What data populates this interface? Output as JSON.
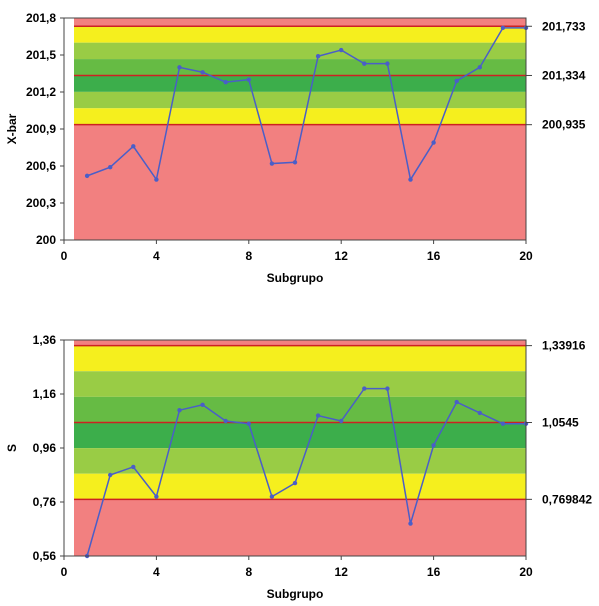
{
  "colors": {
    "red_zone": "#f28080",
    "yellow_zone": "#f5ef1e",
    "light_green_zone": "#99cc45",
    "mid_green_zone": "#66bb44",
    "dark_green_zone": "#3cae4b",
    "limit_line": "#cc2222",
    "series_line": "#4a5ec8",
    "axis": "#444444"
  },
  "chart_data": [
    {
      "type": "line",
      "title": "",
      "xlabel": "Subgrupo",
      "ylabel": "X-bar",
      "xlim": [
        0,
        20
      ],
      "ylim": [
        200,
        201.8
      ],
      "xticks": [
        "0",
        "4",
        "8",
        "12",
        "16",
        "20"
      ],
      "yticks": [
        "200",
        "200,3",
        "200,6",
        "200,9",
        "201,2",
        "201,5",
        "201,8"
      ],
      "limits": {
        "ucl": 201.733,
        "center": 201.334,
        "lcl": 200.935
      },
      "limit_labels": [
        "201,733",
        "201,334",
        "200,935"
      ],
      "x": [
        1,
        2,
        3,
        4,
        5,
        6,
        7,
        8,
        9,
        10,
        11,
        12,
        13,
        14,
        15,
        16,
        17,
        18,
        19,
        20
      ],
      "values": [
        200.52,
        200.59,
        200.76,
        200.49,
        201.4,
        201.36,
        201.28,
        201.3,
        200.62,
        200.63,
        201.49,
        201.54,
        201.43,
        201.43,
        200.49,
        200.79,
        201.29,
        201.4,
        201.72,
        201.72
      ],
      "grid": false
    },
    {
      "type": "line",
      "title": "",
      "xlabel": "Subgrupo",
      "ylabel": "S",
      "xlim": [
        0,
        20
      ],
      "ylim": [
        0.56,
        1.36
      ],
      "xticks": [
        "0",
        "4",
        "8",
        "12",
        "16",
        "20"
      ],
      "yticks": [
        "0,56",
        "0,76",
        "0,96",
        "1,16",
        "1,36"
      ],
      "limits": {
        "ucl": 1.33916,
        "center": 1.0545,
        "lcl": 0.769842
      },
      "limit_labels": [
        "1,33916",
        "1,0545",
        "0,769842"
      ],
      "x": [
        1,
        2,
        3,
        4,
        5,
        6,
        7,
        8,
        9,
        10,
        11,
        12,
        13,
        14,
        15,
        16,
        17,
        18,
        19,
        20
      ],
      "values": [
        0.56,
        0.86,
        0.89,
        0.78,
        1.1,
        1.12,
        1.06,
        1.05,
        0.78,
        0.83,
        1.08,
        1.06,
        1.18,
        1.18,
        0.68,
        0.97,
        1.13,
        1.09,
        1.05,
        1.05
      ],
      "grid": false
    }
  ]
}
